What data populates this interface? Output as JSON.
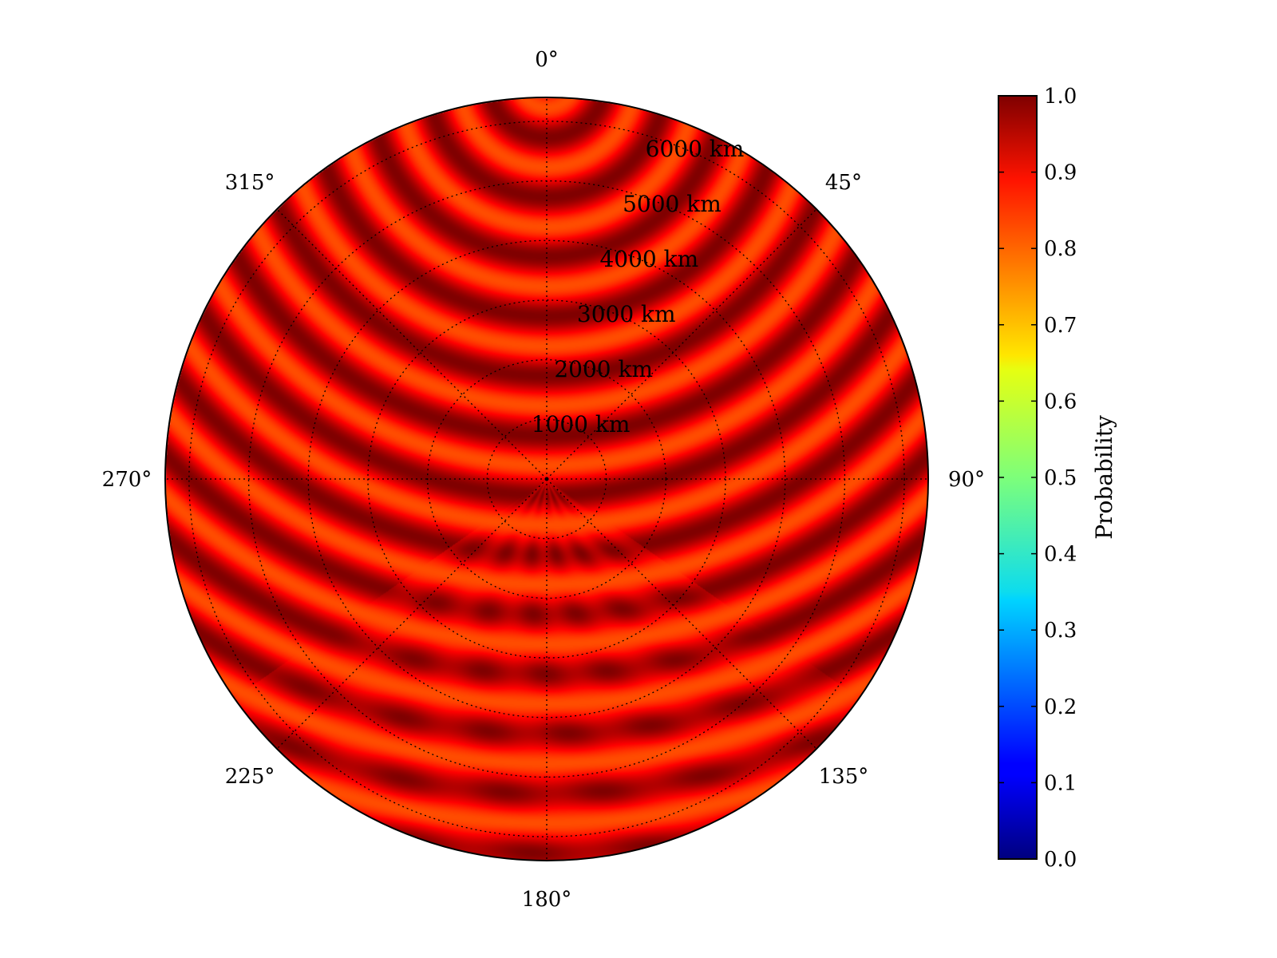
{
  "chart_data": {
    "type": "heatmap",
    "projection": "polar",
    "theta_zero_location": "N",
    "theta_direction": "clockwise",
    "title": "",
    "angular_ticks": [
      "0°",
      "45°",
      "90°",
      "135°",
      "180°",
      "225°",
      "270°",
      "315°"
    ],
    "angular_tick_values_deg": [
      0,
      45,
      90,
      135,
      180,
      225,
      270,
      315
    ],
    "radial_ticks": [
      "1000 km",
      "2000 km",
      "3000 km",
      "4000 km",
      "5000 km",
      "6000 km"
    ],
    "radial_tick_values_km": [
      1000,
      2000,
      3000,
      4000,
      5000,
      6000
    ],
    "r_range_km": [
      0,
      6400
    ],
    "radial_label_angle_deg": 22.5,
    "grid": "dotted",
    "colormap": "jet",
    "value_range": [
      0.0,
      1.0
    ],
    "colorbar": {
      "label": "Probability",
      "ticks": [
        "0.0",
        "0.1",
        "0.2",
        "0.3",
        "0.4",
        "0.5",
        "0.6",
        "0.7",
        "0.8",
        "0.9",
        "1.0"
      ],
      "tick_values": [
        0.0,
        0.1,
        0.2,
        0.3,
        0.4,
        0.5,
        0.6,
        0.7,
        0.8,
        0.9,
        1.0
      ],
      "location": "right"
    },
    "field": {
      "description": "concentric ring pattern centered near the 0° edge",
      "ring_spacing_km": 1000,
      "min_value": 0.8,
      "max_value": 1.0,
      "distorted_sector_deg": [
        125,
        235
      ]
    }
  }
}
